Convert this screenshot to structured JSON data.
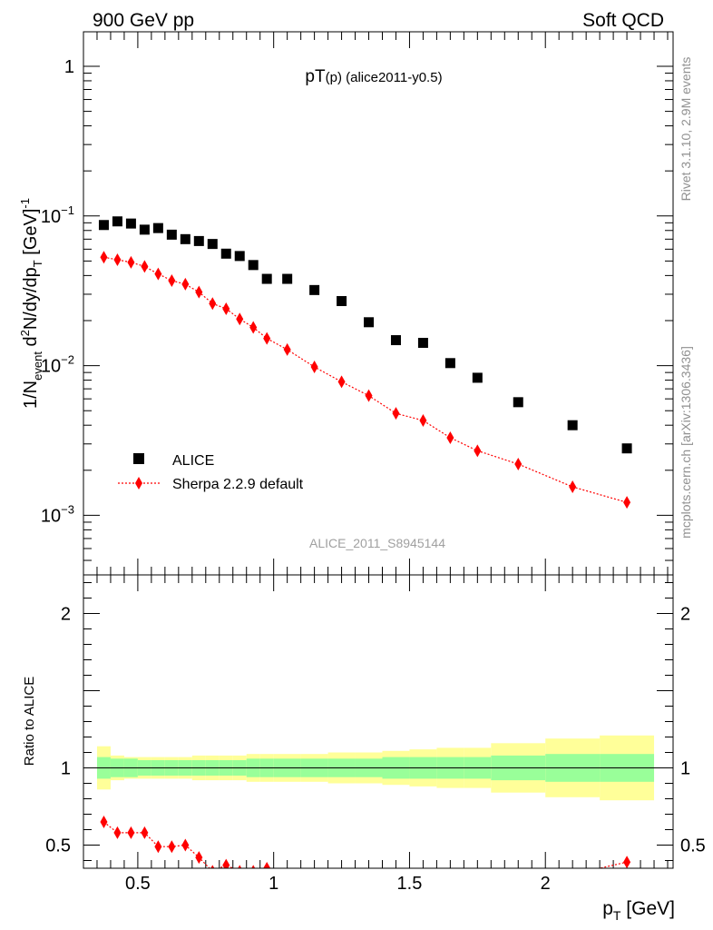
{
  "header": {
    "left_label": "900 GeV pp",
    "right_label": "Soft QCD"
  },
  "side_labels": {
    "rivet": "Rivet 3.1.10,  2.9M events",
    "mcplots": "mcplots.cern.ch [arXiv:1306.3436]"
  },
  "chart_data": [
    {
      "type": "scatter",
      "title": "pT",
      "title_sub": "(p)",
      "title_suffix": " (alice2011-y0.5)",
      "ylabel": "1/N_event d²N/dy/dp_T [GeV]⁻¹",
      "xlabel": "p_T [GeV]",
      "yscale": "log",
      "ylim": [
        0.0004,
        1.7
      ],
      "xlim": [
        0.3,
        2.47
      ],
      "watermark": "ALICE_2011_S8945144",
      "y_ticks": [
        {
          "value": 1,
          "base": "1",
          "exp": ""
        },
        {
          "value": 0.1,
          "base": "10",
          "exp": "−1"
        },
        {
          "value": 0.01,
          "base": "10",
          "exp": "−2"
        },
        {
          "value": 0.001,
          "base": "10",
          "exp": "−3"
        }
      ],
      "x": [
        0.375,
        0.425,
        0.475,
        0.525,
        0.575,
        0.625,
        0.675,
        0.725,
        0.775,
        0.825,
        0.875,
        0.925,
        0.975,
        1.05,
        1.15,
        1.25,
        1.35,
        1.45,
        1.55,
        1.65,
        1.75,
        1.9,
        2.1,
        2.3
      ],
      "series": [
        {
          "name": "ALICE",
          "marker": "square",
          "color": "#000000",
          "values": [
            0.087,
            0.092,
            0.089,
            0.081,
            0.083,
            0.075,
            0.07,
            0.068,
            0.065,
            0.056,
            0.054,
            0.047,
            0.038,
            0.038,
            0.032,
            0.027,
            0.0195,
            0.0148,
            0.0142,
            0.0104,
            0.0083,
            0.0057,
            0.004,
            0.0028
          ]
        },
        {
          "name": "Sherpa 2.2.9 default",
          "marker": "diamond",
          "color": "#ff0000",
          "values": [
            0.053,
            0.051,
            0.049,
            0.046,
            0.041,
            0.037,
            0.035,
            0.031,
            0.026,
            0.024,
            0.0205,
            0.018,
            0.0152,
            0.0128,
            0.0098,
            0.0078,
            0.0063,
            0.0048,
            0.0043,
            0.0033,
            0.0027,
            0.0022,
            0.00155,
            0.00122
          ]
        }
      ],
      "legend": {
        "position": "bottom-left",
        "entries": [
          "ALICE",
          "Sherpa 2.2.9 default"
        ]
      }
    },
    {
      "type": "scatter",
      "ylabel": "Ratio to ALICE",
      "xlabel": "p_T [GeV]",
      "ylim": [
        0.35,
        2.25
      ],
      "xlim": [
        0.3,
        2.47
      ],
      "y_ticks": [
        {
          "value": 0.5,
          "label": "0.5"
        },
        {
          "value": 1,
          "label": "1"
        },
        {
          "value": 2,
          "label": "2"
        }
      ],
      "x_ticks": [
        {
          "value": 0.5,
          "label": "0.5"
        },
        {
          "value": 1,
          "label": "1"
        },
        {
          "value": 1.5,
          "label": "1.5"
        },
        {
          "value": 2,
          "label": "2"
        }
      ],
      "bin_edges": [
        0.35,
        0.4,
        0.45,
        0.5,
        0.55,
        0.6,
        0.65,
        0.7,
        0.75,
        0.8,
        0.85,
        0.9,
        0.95,
        1.0,
        1.1,
        1.2,
        1.3,
        1.4,
        1.5,
        1.6,
        1.7,
        1.8,
        2.0,
        2.2,
        2.4
      ],
      "band_green_halfwidth": [
        0.07,
        0.06,
        0.06,
        0.05,
        0.05,
        0.05,
        0.05,
        0.05,
        0.05,
        0.05,
        0.05,
        0.06,
        0.06,
        0.06,
        0.06,
        0.06,
        0.06,
        0.07,
        0.07,
        0.07,
        0.07,
        0.08,
        0.09,
        0.09
      ],
      "band_yellow_halfwidth": [
        0.14,
        0.08,
        0.07,
        0.07,
        0.07,
        0.07,
        0.07,
        0.08,
        0.08,
        0.08,
        0.08,
        0.09,
        0.09,
        0.09,
        0.09,
        0.1,
        0.1,
        0.11,
        0.12,
        0.13,
        0.13,
        0.16,
        0.19,
        0.21
      ],
      "ratio_series": {
        "name": "Sherpa 2.2.9 default",
        "color": "#ff0000",
        "x": [
          0.375,
          0.425,
          0.475,
          0.525,
          0.575,
          0.625,
          0.675,
          0.725,
          0.775,
          0.825,
          0.875,
          0.925,
          0.975,
          2.3
        ],
        "values": [
          0.65,
          0.58,
          0.58,
          0.58,
          0.49,
          0.49,
          0.5,
          0.42,
          0.33,
          0.37,
          0.33,
          0.33,
          0.35,
          0.39
        ]
      }
    }
  ]
}
